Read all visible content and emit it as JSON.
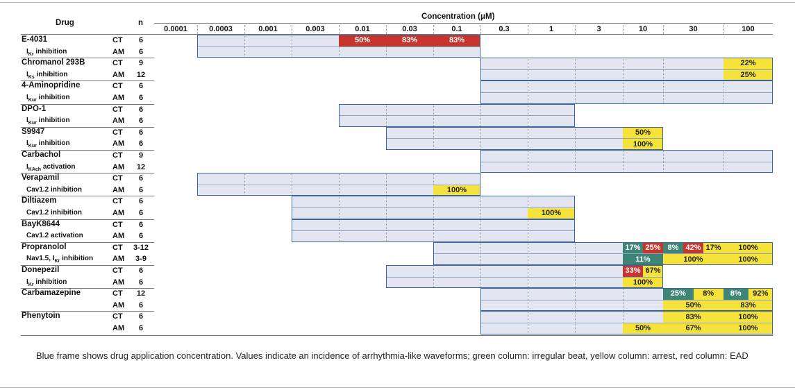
{
  "header": {
    "drug": "Drug",
    "n": "n",
    "concentration": "Concentration (μM)",
    "concentrations": [
      "0.0001",
      "0.0003",
      "0.001",
      "0.003",
      "0.01",
      "0.03",
      "0.1",
      "0.3",
      "1",
      "3",
      "10",
      "30",
      "100"
    ]
  },
  "colors": {
    "frame": "#3a64a0",
    "fill": "#e3e6f0",
    "red": "#c8352c",
    "yellow": "#f5e23a",
    "green": "#3f8577"
  },
  "drugs": [
    {
      "name": "E-4031",
      "target": "IKr inhibition",
      "target_main": "I",
      "target_sub": "Kr",
      "target_rest": " inhibition",
      "range": [
        1,
        6
      ],
      "rows": [
        {
          "mode": "CT",
          "n": "6",
          "range": [
            1,
            3
          ],
          "cells": [
            {
              "start": 4,
              "end": 4,
              "text": "50%",
              "color": "red"
            },
            {
              "start": 5,
              "end": 5,
              "text": "83%",
              "color": "red"
            },
            {
              "start": 6,
              "end": 6,
              "text": "83%",
              "color": "red"
            }
          ]
        },
        {
          "mode": "AM",
          "n": "6",
          "range": [
            1,
            6
          ],
          "cells": []
        }
      ]
    },
    {
      "name": "Chromanol 293B",
      "target": "IKs inhibition",
      "target_main": "I",
      "target_sub": "Ks",
      "target_rest": " inhibition",
      "range": [
        7,
        12
      ],
      "rows": [
        {
          "mode": "CT",
          "n": "9",
          "range": [
            7,
            12
          ],
          "cells": [
            {
              "start": 12,
              "end": 12,
              "text": "22%",
              "color": "yellow"
            }
          ]
        },
        {
          "mode": "AM",
          "n": "12",
          "range": [
            7,
            12
          ],
          "cells": [
            {
              "start": 12,
              "end": 12,
              "text": "25%",
              "color": "yellow"
            }
          ]
        }
      ]
    },
    {
      "name": "4-Aminopridine",
      "target": "IKur inhibition",
      "target_main": "I",
      "target_sub": "Kur",
      "target_rest": " inhibition",
      "range": [
        7,
        12
      ],
      "rows": [
        {
          "mode": "CT",
          "n": "6",
          "range": [
            7,
            12
          ],
          "cells": []
        },
        {
          "mode": "AM",
          "n": "6",
          "range": [
            7,
            12
          ],
          "cells": []
        }
      ]
    },
    {
      "name": "DPO-1",
      "target": "IKur inhibition",
      "target_main": "I",
      "target_sub": "Kur",
      "target_rest": " inhibition",
      "range": [
        4,
        8
      ],
      "rows": [
        {
          "mode": "CT",
          "n": "6",
          "range": [
            4,
            8
          ],
          "cells": []
        },
        {
          "mode": "AM",
          "n": "6",
          "range": [
            4,
            8
          ],
          "cells": []
        }
      ]
    },
    {
      "name": "S9947",
      "target": "IKur inhibition",
      "target_main": "I",
      "target_sub": "Kur",
      "target_rest": " inhibition",
      "range": [
        5,
        10
      ],
      "rows": [
        {
          "mode": "CT",
          "n": "6",
          "range": [
            5,
            9
          ],
          "cells": [
            {
              "start": 10,
              "end": 10,
              "text": "50%",
              "color": "yellow"
            }
          ]
        },
        {
          "mode": "AM",
          "n": "6",
          "range": [
            5,
            9
          ],
          "cells": [
            {
              "start": 10,
              "end": 10,
              "text": "100%",
              "color": "yellow"
            }
          ]
        }
      ]
    },
    {
      "name": "Carbachol",
      "target": "IKAch activation",
      "target_main": "I",
      "target_sub": "KAch",
      "target_rest": " activation",
      "range": [
        7,
        12
      ],
      "rows": [
        {
          "mode": "CT",
          "n": "9",
          "range": [
            7,
            12
          ],
          "cells": []
        },
        {
          "mode": "AM",
          "n": "12",
          "range": [
            7,
            12
          ],
          "cells": []
        }
      ]
    },
    {
      "name": "Verapamil",
      "target": "Cav1.2 inhibition",
      "target_main": "Cav1.2 inhibition",
      "target_sub": "",
      "target_rest": "",
      "range": [
        1,
        6
      ],
      "rows": [
        {
          "mode": "CT",
          "n": "6",
          "range": [
            1,
            6
          ],
          "cells": []
        },
        {
          "mode": "AM",
          "n": "6",
          "range": [
            1,
            5
          ],
          "cells": [
            {
              "start": 6,
              "end": 6,
              "text": "100%",
              "color": "yellow"
            }
          ]
        }
      ]
    },
    {
      "name": "Diltiazem",
      "target": "Cav1.2 inhibition",
      "target_main": "Cav1.2 inhibition",
      "target_sub": "",
      "target_rest": "",
      "range": [
        3,
        8
      ],
      "rows": [
        {
          "mode": "CT",
          "n": "6",
          "range": [
            3,
            8
          ],
          "cells": []
        },
        {
          "mode": "AM",
          "n": "6",
          "range": [
            3,
            7
          ],
          "cells": [
            {
              "start": 8,
              "end": 8,
              "text": "100%",
              "color": "yellow"
            }
          ]
        }
      ]
    },
    {
      "name": "BayK8644",
      "target": "Cav1.2 activation",
      "target_main": "Cav1.2 activation",
      "target_sub": "",
      "target_rest": "",
      "range": [
        3,
        8
      ],
      "rows": [
        {
          "mode": "CT",
          "n": "6",
          "range": [
            3,
            8
          ],
          "cells": []
        },
        {
          "mode": "AM",
          "n": "6",
          "range": [
            3,
            8
          ],
          "cells": []
        }
      ]
    },
    {
      "name": "Propranolol",
      "target": "Nav1.5, IKr inhibition",
      "target_main": "Nav1.5, I",
      "target_sub": "Kr",
      "target_rest": " inhibition",
      "range": [
        6,
        12
      ],
      "rows": [
        {
          "mode": "CT",
          "n": "3-12",
          "range": [
            6,
            9
          ],
          "cells": [
            {
              "start": 10,
              "end": 10,
              "part": 0,
              "parts": 2,
              "text": "17%",
              "color": "green"
            },
            {
              "start": 10,
              "end": 10,
              "part": 1,
              "parts": 2,
              "text": "25%",
              "color": "red"
            },
            {
              "start": 11,
              "end": 11,
              "part": 0,
              "parts": 3,
              "text": "8%",
              "color": "green"
            },
            {
              "start": 11,
              "end": 11,
              "part": 1,
              "parts": 3,
              "text": "42%",
              "color": "red"
            },
            {
              "start": 11,
              "end": 11,
              "part": 2,
              "parts": 3,
              "text": "17%",
              "color": "yellow"
            },
            {
              "start": 12,
              "end": 12,
              "text": "100%",
              "color": "yellow"
            }
          ]
        },
        {
          "mode": "AM",
          "n": "3-9",
          "range": [
            6,
            9
          ],
          "cells": [
            {
              "start": 10,
              "end": 10,
              "text": "11%",
              "color": "green"
            },
            {
              "start": 11,
              "end": 11,
              "text": "100%",
              "color": "yellow"
            },
            {
              "start": 12,
              "end": 12,
              "text": "100%",
              "color": "yellow"
            }
          ]
        }
      ]
    },
    {
      "name": "Donepezil",
      "target": "IKr inhibition",
      "target_main": "I",
      "target_sub": "Kr",
      "target_rest": " inhibition",
      "range": [
        5,
        10
      ],
      "rows": [
        {
          "mode": "CT",
          "n": "6",
          "range": [
            5,
            9
          ],
          "cells": [
            {
              "start": 10,
              "end": 10,
              "part": 0,
              "parts": 2,
              "text": "33%",
              "color": "red"
            },
            {
              "start": 10,
              "end": 10,
              "part": 1,
              "parts": 2,
              "text": "67%",
              "color": "yellow"
            }
          ]
        },
        {
          "mode": "AM",
          "n": "6",
          "range": [
            5,
            9
          ],
          "cells": [
            {
              "start": 10,
              "end": 10,
              "text": "100%",
              "color": "yellow"
            }
          ]
        }
      ]
    },
    {
      "name": "Carbamazepine",
      "target": "",
      "target_main": "",
      "target_sub": "",
      "target_rest": "",
      "range": [
        7,
        12
      ],
      "rows": [
        {
          "mode": "CT",
          "n": "12",
          "range": [
            7,
            10
          ],
          "cells": [
            {
              "start": 11,
              "end": 11,
              "part": 0,
              "parts": 2,
              "text": "25%",
              "color": "green"
            },
            {
              "start": 11,
              "end": 11,
              "part": 1,
              "parts": 2,
              "text": "8%",
              "color": "yellow"
            },
            {
              "start": 12,
              "end": 12,
              "part": 0,
              "parts": 2,
              "text": "8%",
              "color": "green"
            },
            {
              "start": 12,
              "end": 12,
              "part": 1,
              "parts": 2,
              "text": "92%",
              "color": "yellow"
            }
          ]
        },
        {
          "mode": "AM",
          "n": "6",
          "range": [
            7,
            10
          ],
          "cells": [
            {
              "start": 11,
              "end": 11,
              "text": "50%",
              "color": "yellow"
            },
            {
              "start": 12,
              "end": 12,
              "text": "83%",
              "color": "yellow"
            }
          ]
        }
      ]
    },
    {
      "name": "Phenytoin",
      "target": "",
      "target_main": "",
      "target_sub": "",
      "target_rest": "",
      "range": [
        7,
        12
      ],
      "rows": [
        {
          "mode": "CT",
          "n": "6",
          "range": [
            7,
            10
          ],
          "cells": [
            {
              "start": 11,
              "end": 11,
              "text": "83%",
              "color": "yellow"
            },
            {
              "start": 12,
              "end": 12,
              "text": "100%",
              "color": "yellow"
            }
          ]
        },
        {
          "mode": "AM",
          "n": "6",
          "range": [
            7,
            9
          ],
          "cells": [
            {
              "start": 10,
              "end": 10,
              "text": "50%",
              "color": "yellow"
            },
            {
              "start": 11,
              "end": 11,
              "text": "67%",
              "color": "yellow"
            },
            {
              "start": 12,
              "end": 12,
              "text": "100%",
              "color": "yellow"
            }
          ]
        }
      ]
    }
  ],
  "caption": "Blue frame shows drug application concentration. Values indicate an incidence of arrhythmia-like waveforms; green column: irregular beat, yellow column: arrest, red column: EAD"
}
